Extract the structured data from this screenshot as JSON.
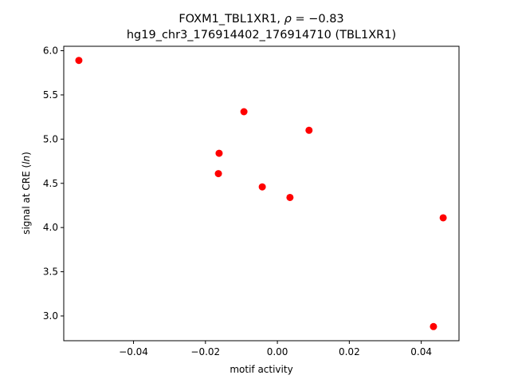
{
  "chart_data": {
    "type": "scatter",
    "title_line1_prefix": "FOXM1_TBL1XR1, ",
    "title_rho_symbol": "ρ",
    "title_rho_value": " = −0.83",
    "title_line2": "hg19_chr3_176914402_176914710 (TBL1XR1)",
    "xlabel": "motif activity",
    "ylabel_prefix": "signal at CRE (",
    "ylabel_italic": "ln",
    "ylabel_suffix": ")",
    "xlim": [
      -0.0594,
      0.0505
    ],
    "ylim": [
      2.72,
      6.05
    ],
    "x_ticks": [
      -0.04,
      -0.02,
      0.0,
      0.02,
      0.04
    ],
    "x_tick_labels": [
      "−0.04",
      "−0.02",
      "0.00",
      "0.02",
      "0.04"
    ],
    "y_ticks": [
      3.0,
      3.5,
      4.0,
      4.5,
      5.0,
      5.5,
      6.0
    ],
    "y_tick_labels": [
      "3.0",
      "3.5",
      "4.0",
      "4.5",
      "5.0",
      "5.5",
      "6.0"
    ],
    "marker_color": "#ff0000",
    "grid": false,
    "points": [
      {
        "x": -0.0552,
        "y": 5.89
      },
      {
        "x": -0.0093,
        "y": 5.31
      },
      {
        "x": 0.0088,
        "y": 5.1
      },
      {
        "x": -0.0162,
        "y": 4.84
      },
      {
        "x": -0.0164,
        "y": 4.61
      },
      {
        "x": -0.0042,
        "y": 4.46
      },
      {
        "x": 0.0035,
        "y": 4.34
      },
      {
        "x": 0.0461,
        "y": 4.11
      },
      {
        "x": 0.0434,
        "y": 2.88
      }
    ]
  }
}
